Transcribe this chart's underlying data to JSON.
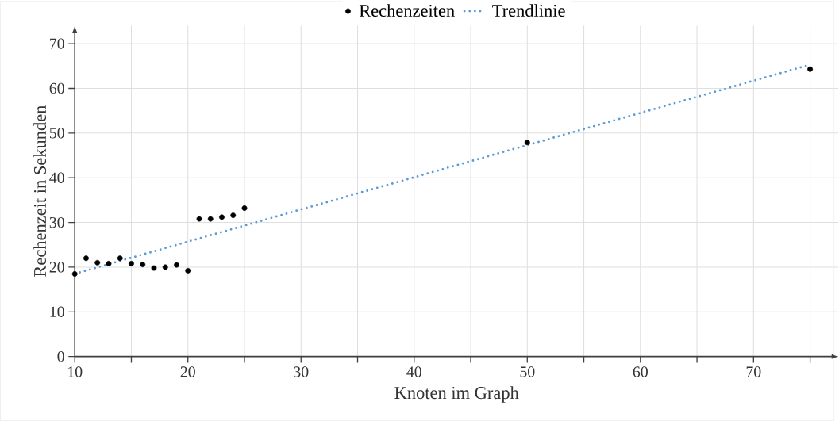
{
  "chart_data": {
    "type": "scatter",
    "xlabel": "Knoten im Graph",
    "ylabel": "Rechenzeit in Sekunden",
    "xlim": [
      10,
      77.5
    ],
    "ylim": [
      0,
      74
    ],
    "xticks": [
      10,
      {
        "value": 15,
        "label": null
      },
      20,
      {
        "value": 25,
        "label": null
      },
      30,
      {
        "value": 35,
        "label": null
      },
      40,
      {
        "value": 45,
        "label": null
      },
      50,
      {
        "value": 55,
        "label": null
      },
      60,
      {
        "value": 65,
        "label": null
      },
      70,
      {
        "value": 75,
        "label": null
      }
    ],
    "yticks": [
      0,
      10,
      20,
      30,
      40,
      50,
      60,
      70
    ],
    "grid": true,
    "legend": "top",
    "series": [
      {
        "name": "Rechenzeiten",
        "color": "#000000",
        "marker": "circle",
        "x": [
          10,
          11,
          12,
          13,
          14,
          15,
          16,
          17,
          18,
          19,
          20,
          21,
          22,
          23,
          24,
          25,
          50,
          75
        ],
        "values": [
          18.5,
          22,
          21,
          20.8,
          22,
          20.8,
          20.6,
          19.8,
          20,
          20.5,
          19.2,
          30.8,
          30.8,
          31.2,
          31.6,
          33.2,
          47.9,
          64.3
        ]
      },
      {
        "name": "Trendlinie",
        "type": "line",
        "marker": "none",
        "line_style": "dotted",
        "color": "#5b9bd5",
        "x": [
          10,
          75
        ],
        "values": [
          18.5,
          65.3
        ]
      }
    ]
  }
}
